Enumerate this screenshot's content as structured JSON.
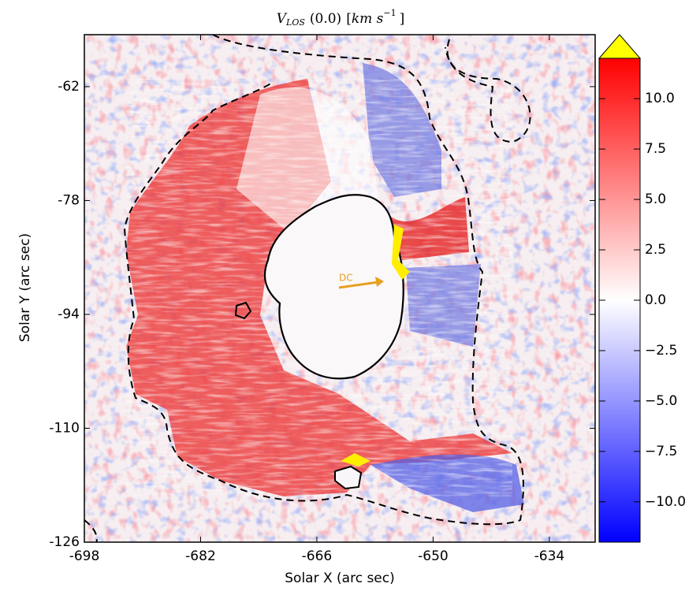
{
  "chart_data": {
    "type": "image",
    "title": [
      "V",
      "LOS",
      "(0.0)",
      "[",
      "km s",
      "−1",
      "]"
    ],
    "xlabel": "Solar X (arc sec)",
    "ylabel": "Solar Y (arc sec)",
    "xlim": [
      -698,
      -627.7
    ],
    "ylim": [
      -126,
      -54.7
    ],
    "xticks": [
      -698,
      -682,
      -666,
      -650,
      -634
    ],
    "yticks": [
      -126,
      -110,
      -94,
      -78,
      -62
    ],
    "clim": [
      -12,
      12
    ],
    "cticks": [
      {
        "value": -10,
        "label": "−10.0"
      },
      {
        "value": -7.5,
        "label": "−7.5"
      },
      {
        "value": -5,
        "label": "−5.0"
      },
      {
        "value": -2.5,
        "label": "−2.5"
      },
      {
        "value": 0,
        "label": "0.0"
      },
      {
        "value": 2.5,
        "label": "2.5"
      },
      {
        "value": 5,
        "label": "5.0"
      },
      {
        "value": 7.5,
        "label": "7.5"
      },
      {
        "value": 10,
        "label": "10.0"
      }
    ],
    "colormap": [
      "#0000ff",
      "#ffffff",
      "#ff0000"
    ],
    "extend_color": "#ffff00",
    "annotation": {
      "text": "DC",
      "color": "#e8a020"
    }
  }
}
